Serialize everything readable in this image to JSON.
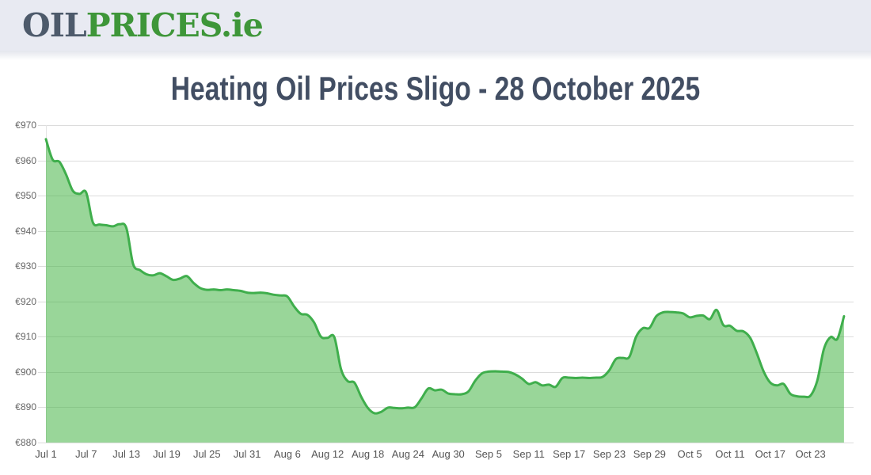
{
  "header": {
    "logo": {
      "oil": "OIL",
      "prices": "PRICES",
      "tld": ".ie"
    }
  },
  "title": "Heating Oil Prices Sligo - 28 October 2025",
  "colors": {
    "header_bg": "#e8eaf2",
    "logo_gray": "#4d5a6b",
    "logo_green": "#3e9639",
    "title": "#424e63",
    "line": "#3fae4c",
    "area_fill": "#45b546",
    "area_fill_opacity": 0.55,
    "gridline": "#dcdcdc",
    "y_label": "#666666",
    "x_label": "#545454"
  },
  "chart_data": {
    "type": "area",
    "title": "Heating Oil Prices Sligo - 28 October 2025",
    "start_date": "Jul 1",
    "end_date": "Oct 28",
    "x_frequency": "daily",
    "ylim": [
      880,
      970
    ],
    "ytick_step": 10,
    "ytick_prefix": "€",
    "grid": "horizontal",
    "legend": "none",
    "x_tick_labels": [
      "Jul 1",
      "Jul 7",
      "Jul 13",
      "Jul 19",
      "Jul 25",
      "Jul 31",
      "Aug 6",
      "Aug 12",
      "Aug 18",
      "Aug 24",
      "Aug 30",
      "Sep 5",
      "Sep 11",
      "Sep 17",
      "Sep 23",
      "Sep 29",
      "Oct 5",
      "Oct 11",
      "Oct 17",
      "Oct 23"
    ],
    "x_tick_days": [
      0,
      6,
      12,
      18,
      24,
      30,
      36,
      42,
      48,
      54,
      60,
      66,
      72,
      78,
      84,
      90,
      96,
      102,
      108,
      114
    ],
    "values": [
      966.0,
      960.2,
      959.6,
      956.0,
      951.4,
      950.5,
      950.9,
      942.4,
      941.8,
      941.6,
      941.3,
      941.9,
      940.8,
      930.6,
      928.9,
      927.7,
      927.4,
      928.0,
      927.1,
      926.1,
      926.5,
      927.2,
      925.3,
      923.8,
      923.3,
      923.4,
      923.2,
      923.4,
      923.2,
      923.0,
      922.5,
      922.4,
      922.5,
      922.3,
      921.9,
      921.7,
      921.4,
      918.6,
      916.5,
      916.2,
      914.0,
      910.0,
      909.7,
      909.9,
      900.8,
      897.4,
      897.0,
      893.0,
      889.8,
      888.3,
      888.7,
      889.9,
      889.8,
      889.7,
      889.9,
      890.0,
      892.5,
      895.3,
      894.8,
      895.0,
      893.9,
      893.7,
      893.7,
      894.5,
      897.5,
      899.6,
      900.1,
      900.2,
      900.1,
      900.0,
      899.3,
      898.1,
      896.6,
      897.1,
      896.2,
      896.4,
      895.8,
      898.3,
      898.4,
      898.3,
      898.4,
      898.3,
      898.4,
      898.6,
      900.5,
      903.7,
      904.0,
      904.3,
      910.0,
      912.4,
      912.5,
      915.8,
      916.9,
      917.0,
      916.9,
      916.6,
      915.5,
      915.9,
      916.0,
      915.0,
      917.6,
      913.3,
      913.1,
      911.7,
      911.5,
      909.7,
      905.3,
      900.2,
      897.0,
      896.2,
      896.6,
      893.8,
      893.1,
      893.0,
      893.3,
      897.5,
      906.5,
      909.9,
      909.4,
      915.8
    ]
  }
}
